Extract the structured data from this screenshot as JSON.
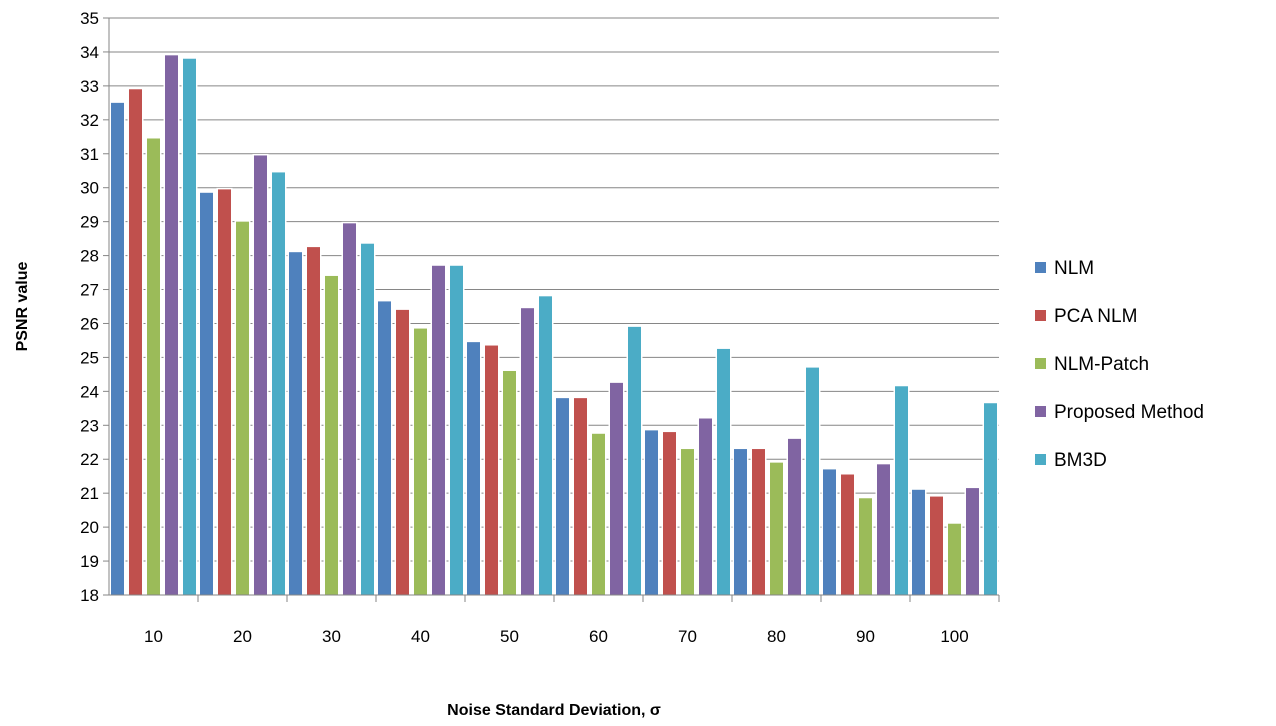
{
  "chart_data": {
    "type": "bar",
    "title": "",
    "xlabel": "Noise Standard Deviation, σ",
    "ylabel": "PSNR value",
    "ylim": [
      18,
      35
    ],
    "yticks": [
      18,
      19,
      20,
      21,
      22,
      23,
      24,
      25,
      26,
      27,
      28,
      29,
      30,
      31,
      32,
      33,
      34,
      35
    ],
    "categories": [
      "10",
      "20",
      "30",
      "40",
      "50",
      "60",
      "70",
      "80",
      "90",
      "100"
    ],
    "grid": true,
    "legend_position": "right",
    "series": [
      {
        "name": "NLM",
        "color": "#4f81bd",
        "values": [
          32.5,
          29.85,
          28.1,
          26.65,
          25.45,
          23.8,
          22.85,
          22.3,
          21.7,
          21.1
        ]
      },
      {
        "name": "PCA NLM",
        "color": "#c0504d",
        "values": [
          32.9,
          29.95,
          28.25,
          26.4,
          25.35,
          23.8,
          22.8,
          22.3,
          21.55,
          20.9
        ]
      },
      {
        "name": "NLM-Patch",
        "color": "#9bbb59",
        "values": [
          31.45,
          29.0,
          27.4,
          25.85,
          24.6,
          22.75,
          22.3,
          21.9,
          20.85,
          20.1
        ]
      },
      {
        "name": "Proposed Method",
        "color": "#8064a2",
        "values": [
          33.9,
          30.95,
          28.95,
          27.7,
          26.45,
          24.25,
          23.2,
          22.6,
          21.85,
          21.15
        ]
      },
      {
        "name": "BM3D",
        "color": "#4bacc6",
        "values": [
          33.8,
          30.45,
          28.35,
          27.7,
          26.8,
          25.9,
          25.25,
          24.7,
          24.15,
          23.65
        ]
      }
    ]
  }
}
